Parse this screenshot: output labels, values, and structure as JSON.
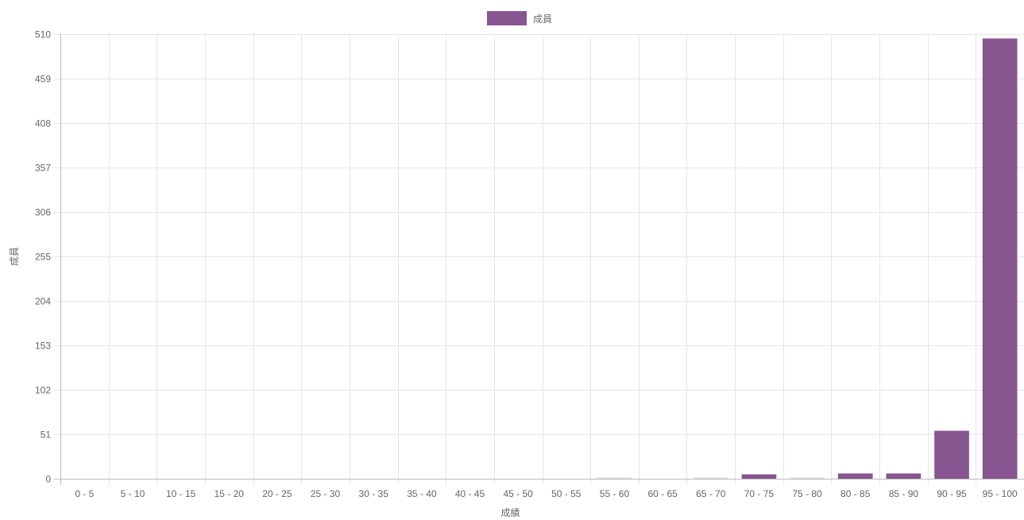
{
  "chart_data": {
    "type": "bar",
    "categories": [
      "0 - 5",
      "5 - 10",
      "10 - 15",
      "15 - 20",
      "20 - 25",
      "25 - 30",
      "30 - 35",
      "35 - 40",
      "40 - 45",
      "45 - 50",
      "50 - 55",
      "55 - 60",
      "60 - 65",
      "65 - 70",
      "70 - 75",
      "75 - 80",
      "80 - 85",
      "85 - 90",
      "90 - 95",
      "95 - 100"
    ],
    "series": [
      {
        "name": "成員",
        "values": [
          0,
          0,
          0,
          0,
          0,
          0,
          0,
          0,
          0,
          0,
          0,
          1,
          0,
          1,
          5,
          1,
          6,
          6,
          55,
          505
        ]
      }
    ],
    "xlabel": "成績",
    "ylabel": "成員",
    "ylim": [
      0,
      510
    ],
    "yticks": [
      0,
      51,
      102,
      153,
      204,
      255,
      306,
      357,
      408,
      459,
      510
    ],
    "grid": true,
    "legend_position": "top-center",
    "colors": {
      "bar_fill": "#87558f",
      "bar_border": "#dddddd",
      "grid": "#e6e6e6",
      "axis": "#bbbbbb",
      "text": "#666666"
    }
  }
}
